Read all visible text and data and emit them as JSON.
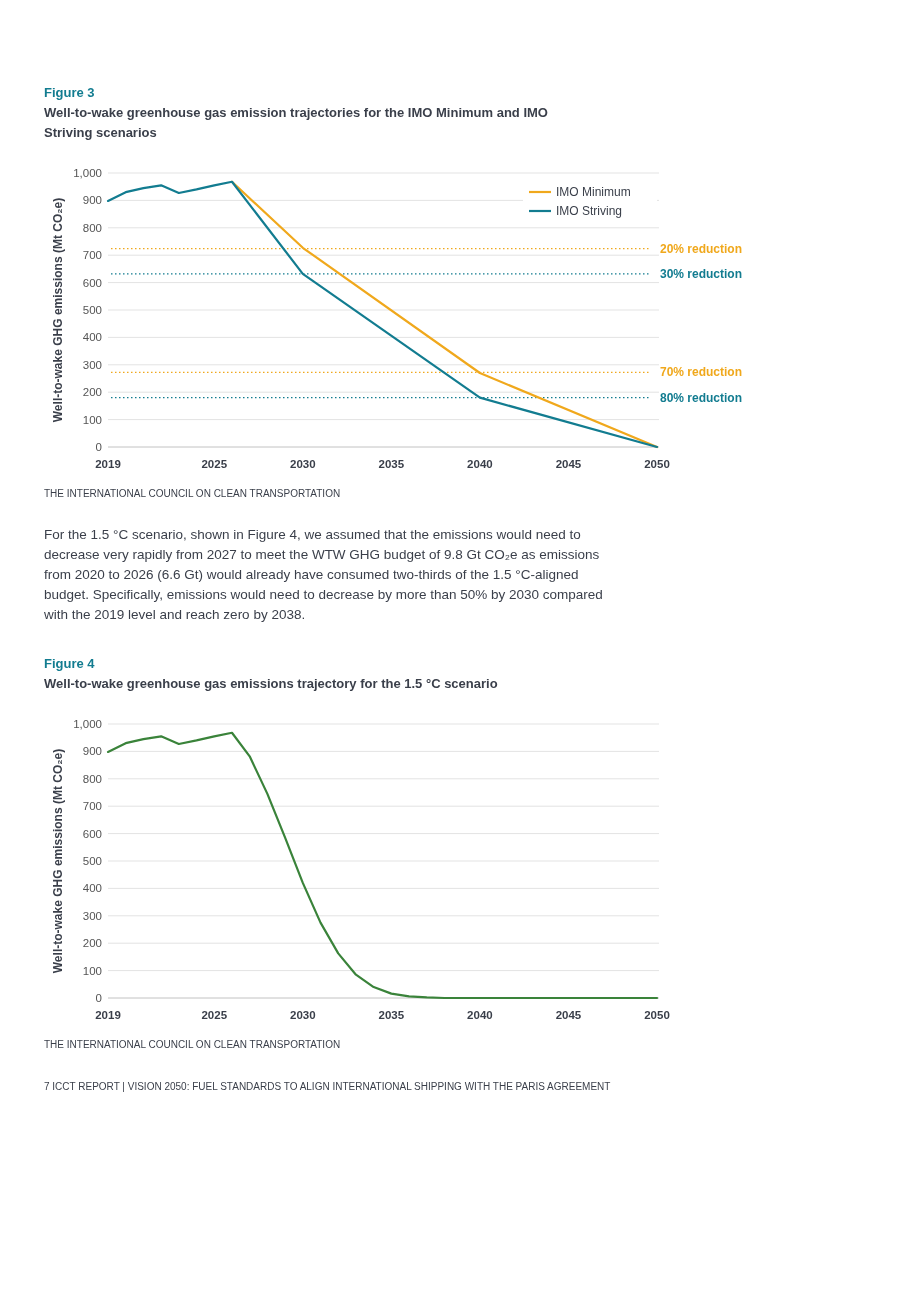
{
  "chart_data": [
    {
      "type": "line",
      "title": "Figure 3",
      "subtitle": "Well-to-wake greenhouse gas emission trajectories for the IMO Minimum and IMO Striving scenarios",
      "ylabel": "Well-to-wake GHG emissions (Mt CO₂e)",
      "xlim": [
        2019,
        2050
      ],
      "xticks": [
        2019,
        2025,
        2030,
        2035,
        2040,
        2045,
        2050
      ],
      "ylim": [
        0,
        1000
      ],
      "yticks": [
        0,
        100,
        200,
        300,
        400,
        500,
        600,
        700,
        800,
        900,
        {
          "value": 1000,
          "label": "1,000"
        }
      ],
      "grid": "y",
      "legend": "top right",
      "series": [
        {
          "name": "IMO Minimum",
          "color": "#f0a81c",
          "x": [
            2026,
            2030,
            2040,
            2050
          ],
          "values": [
            968,
            727,
            270,
            0
          ]
        },
        {
          "name": "IMO Striving",
          "color": "#127c90",
          "x": [
            2019,
            2020,
            2021,
            2022,
            2023,
            2024,
            2025,
            2026,
            2030,
            2040,
            2050
          ],
          "values": [
            898,
            930,
            945,
            955,
            927,
            940,
            955,
            968,
            632,
            180,
            0
          ]
        }
      ],
      "ref_lines": [
        {
          "axis": "y",
          "value": 724,
          "label": "20% reduction",
          "color": "#f0a81c",
          "line_style": "dotted"
        },
        {
          "axis": "y",
          "value": 632,
          "label": "30% reduction",
          "color": "#127c90",
          "line_style": "dotted"
        },
        {
          "axis": "y",
          "value": 272,
          "label": "70% reduction",
          "color": "#f0a81c",
          "line_style": "dotted"
        },
        {
          "axis": "y",
          "value": 180,
          "label": "80% reduction",
          "color": "#127c90",
          "line_style": "dotted"
        }
      ],
      "annotations": [
        "THE INTERNATIONAL COUNCIL ON CLEAN TRANSPORTATION",
        "For the 1.5 °C scenario, shown in Figure 4, we assumed that the emissions would need to decrease very rapidly from 2027 to meet the WTW GHG budget of 9.8 Gt CO₂e as emissions from 2020 to 2026 (6.6 Gt) would already have consumed two-thirds of the 1.5 °C-aligned budget. Specifically, emissions would need to decrease by more than 50% by 2030 compared with the 2019 level and reach zero by 2038."
      ]
    },
    {
      "type": "line",
      "title": "Figure 4",
      "subtitle": "Well-to-wake greenhouse gas emissions trajectory for the 1.5 °C scenario",
      "ylabel": "Well-to-wake GHG emissions (Mt CO₂e)",
      "xlim": [
        2019,
        2050
      ],
      "xticks": [
        2019,
        2025,
        2030,
        2035,
        2040,
        2045,
        2050
      ],
      "ylim": [
        0,
        1000
      ],
      "yticks": [
        0,
        100,
        200,
        300,
        400,
        500,
        600,
        700,
        800,
        900,
        {
          "value": 1000,
          "label": "1,000"
        }
      ],
      "grid": "y",
      "series": [
        {
          "color": "#3a833a",
          "x": [
            2019,
            2020,
            2021,
            2022,
            2023,
            2024,
            2025,
            2026,
            2027,
            2028,
            2029,
            2030,
            2031,
            2032,
            2033,
            2034,
            2035,
            2036,
            2037,
            2038,
            2039,
            2040,
            2041,
            2042,
            2043,
            2044,
            2045,
            2046,
            2047,
            2048,
            2049,
            2050
          ],
          "values": [
            898,
            930,
            945,
            955,
            927,
            940,
            955,
            968,
            882,
            745,
            585,
            420,
            275,
            163,
            85,
            40,
            16,
            6,
            2,
            0,
            0,
            0,
            0,
            0,
            0,
            0,
            0,
            0,
            0,
            0,
            0,
            0
          ]
        }
      ],
      "annotations": [
        "THE INTERNATIONAL COUNCIL ON CLEAN TRANSPORTATION",
        "7   ICCT REPORT  |  VISION 2050: FUEL STANDARDS TO ALIGN INTERNATIONAL SHIPPING WITH THE PARIS AGREEMENT"
      ]
    }
  ]
}
